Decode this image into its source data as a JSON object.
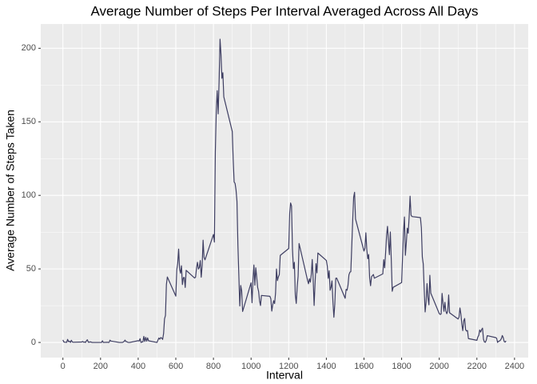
{
  "chart_data": {
    "type": "line",
    "title": "Average Number of Steps Per Interval Averaged Across All Days",
    "x_label": "Interval",
    "y_label": "Average Number of Steps Taken",
    "x": [
      0,
      5,
      10,
      15,
      20,
      25,
      30,
      35,
      40,
      45,
      50,
      55,
      100,
      105,
      110,
      115,
      120,
      125,
      130,
      135,
      140,
      145,
      150,
      155,
      200,
      205,
      210,
      215,
      220,
      225,
      230,
      235,
      240,
      245,
      250,
      255,
      300,
      305,
      310,
      315,
      320,
      325,
      330,
      335,
      340,
      345,
      350,
      355,
      400,
      405,
      410,
      415,
      420,
      425,
      430,
      435,
      440,
      445,
      450,
      455,
      500,
      505,
      510,
      515,
      520,
      525,
      530,
      535,
      540,
      545,
      550,
      555,
      600,
      605,
      610,
      615,
      620,
      625,
      630,
      635,
      640,
      645,
      650,
      655,
      700,
      705,
      710,
      715,
      720,
      725,
      730,
      735,
      740,
      745,
      750,
      755,
      800,
      805,
      810,
      815,
      820,
      825,
      830,
      835,
      840,
      845,
      850,
      855,
      900,
      905,
      910,
      915,
      920,
      925,
      930,
      935,
      940,
      945,
      950,
      955,
      1000,
      1005,
      1010,
      1015,
      1020,
      1025,
      1030,
      1035,
      1040,
      1045,
      1050,
      1055,
      1100,
      1105,
      1110,
      1115,
      1120,
      1125,
      1130,
      1135,
      1140,
      1145,
      1150,
      1155,
      1200,
      1205,
      1210,
      1215,
      1220,
      1225,
      1230,
      1235,
      1240,
      1245,
      1250,
      1255,
      1300,
      1305,
      1310,
      1315,
      1320,
      1325,
      1330,
      1335,
      1340,
      1345,
      1350,
      1355,
      1400,
      1405,
      1410,
      1415,
      1420,
      1425,
      1430,
      1435,
      1440,
      1445,
      1450,
      1455,
      1500,
      1505,
      1510,
      1515,
      1520,
      1525,
      1530,
      1535,
      1540,
      1545,
      1550,
      1555,
      1600,
      1605,
      1610,
      1615,
      1620,
      1625,
      1630,
      1635,
      1640,
      1645,
      1650,
      1655,
      1700,
      1705,
      1710,
      1715,
      1720,
      1725,
      1730,
      1735,
      1740,
      1745,
      1750,
      1755,
      1800,
      1805,
      1810,
      1815,
      1820,
      1825,
      1830,
      1835,
      1840,
      1845,
      1850,
      1855,
      1900,
      1905,
      1910,
      1915,
      1920,
      1925,
      1930,
      1935,
      1940,
      1945,
      1950,
      1955,
      2000,
      2005,
      2010,
      2015,
      2020,
      2025,
      2030,
      2035,
      2040,
      2045,
      2050,
      2055,
      2100,
      2105,
      2110,
      2115,
      2120,
      2125,
      2130,
      2135,
      2140,
      2145,
      2150,
      2155,
      2200,
      2205,
      2210,
      2215,
      2220,
      2225,
      2230,
      2235,
      2240,
      2245,
      2250,
      2255,
      2300,
      2305,
      2310,
      2315,
      2320,
      2325,
      2330,
      2335,
      2340,
      2345,
      2350,
      2355
    ],
    "values": [
      1.72,
      0.34,
      0.13,
      0.15,
      0.08,
      2.09,
      0.53,
      0.87,
      0,
      1.47,
      0.3,
      0.13,
      0.32,
      0.68,
      0.15,
      0.34,
      0,
      1.11,
      1.83,
      0.17,
      0.17,
      0.38,
      0.26,
      0,
      0,
      0,
      1.13,
      0,
      0,
      0.13,
      0,
      0.23,
      0,
      0,
      1.55,
      0.94,
      0,
      0,
      0,
      0,
      0.21,
      0.62,
      1.62,
      0.58,
      0.49,
      0.08,
      0,
      0,
      1.19,
      0.94,
      2.57,
      0,
      0.34,
      0.36,
      4.11,
      0.66,
      3.49,
      0.83,
      3.11,
      1.11,
      0,
      1.57,
      3,
      2.25,
      3.32,
      2.96,
      2.09,
      6.06,
      16.02,
      18.34,
      39.45,
      44.49,
      31.49,
      49.26,
      53.77,
      63.45,
      49.96,
      47.08,
      52.15,
      39.34,
      44.02,
      44.17,
      37.36,
      49.04,
      43.81,
      44.38,
      50.51,
      54.51,
      49.92,
      50.98,
      55.68,
      44.32,
      52.26,
      69.55,
      57.85,
      56.15,
      73.38,
      68.21,
      129.43,
      157.53,
      171.15,
      155.4,
      177.3,
      206.17,
      195.92,
      179.57,
      183.4,
      167.02,
      143.45,
      124.04,
      109.11,
      108.11,
      103.72,
      95.96,
      66.21,
      45.23,
      24.79,
      38.75,
      34.98,
      21.06,
      40.57,
      26.98,
      42.42,
      52.66,
      38.92,
      50.79,
      44.28,
      37.42,
      34.7,
      28.34,
      25.09,
      31.94,
      31.36,
      29.68,
      21.32,
      25.55,
      28.38,
      26.47,
      33.43,
      49.98,
      42.04,
      44.6,
      46.04,
      59.19,
      63.87,
      87.7,
      94.85,
      92.77,
      63.4,
      50.17,
      54.47,
      32.42,
      26.53,
      37.74,
      45.06,
      67.28,
      42.34,
      39.89,
      43.26,
      40.98,
      46.25,
      56.43,
      42.75,
      25.13,
      39.96,
      53.55,
      47.32,
      60.81,
      55.75,
      51.96,
      43.58,
      48.7,
      35.47,
      37.55,
      41.85,
      27.51,
      17.11,
      26.08,
      43.62,
      43.77,
      30.02,
      36.08,
      35.49,
      38.85,
      45.96,
      47.75,
      48.13,
      65.32,
      82.91,
      98.66,
      102.11,
      83.96,
      62.13,
      64.13,
      74.55,
      63.17,
      56.91,
      59.77,
      43.87,
      38.57,
      44.66,
      45.45,
      46.21,
      43.68,
      46.62,
      56.3,
      50.72,
      61.23,
      72.72,
      78.94,
      68.94,
      59.66,
      75.09,
      56.51,
      34.77,
      37.45,
      40.68,
      58.02,
      74.7,
      85.32,
      59.26,
      67.77,
      77.7,
      74.25,
      85.34,
      99.45,
      86.58,
      85.6,
      84.87,
      77.83,
      58.04,
      53.36,
      36.32,
      20.72,
      27.4,
      40.02,
      30.21,
      25.55,
      45.66,
      33.53,
      19.62,
      19.02,
      19.34,
      33.34,
      26.81,
      21.17,
      27.3,
      21.34,
      19.55,
      21.32,
      32.3,
      20.15,
      15.94,
      17.23,
      23.45,
      19.25,
      12.45,
      8.02,
      14.66,
      16.3,
      8.68,
      7.79,
      8.13,
      2.62,
      1.45,
      3.68,
      4.81,
      8.51,
      7.08,
      8.7,
      9.75,
      2.21,
      0.32,
      0.11,
      1.6,
      4.6,
      3.3,
      2.85,
      0,
      0.83,
      0.96,
      1.58,
      2.6,
      4.7,
      3.3,
      0.64,
      0.23,
      1.08
    ],
    "color": "#3e3e62",
    "xlim": [
      -117.75,
      2472.75
    ],
    "ylim": [
      -10.3,
      216.5
    ],
    "xticks": [
      0,
      200,
      400,
      600,
      800,
      1000,
      1200,
      1400,
      1600,
      1800,
      2000,
      2200,
      2400
    ],
    "yticks": [
      0,
      50,
      100,
      150,
      200
    ],
    "grid": true
  }
}
